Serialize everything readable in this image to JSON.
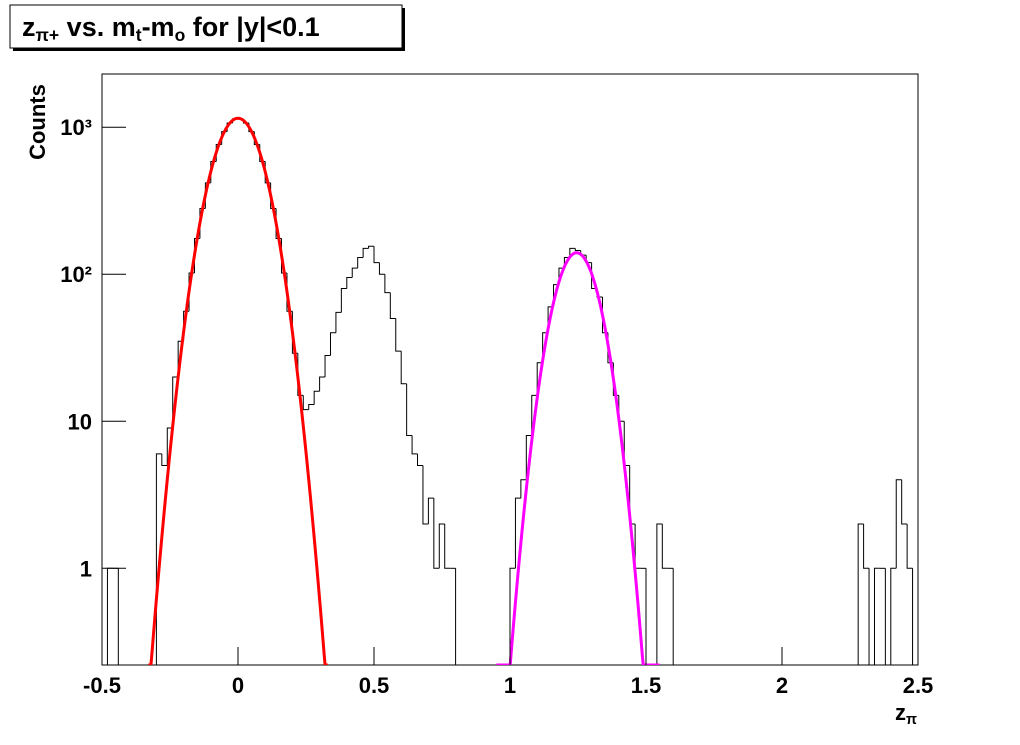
{
  "chart_data": {
    "type": "histogram",
    "title_parts": [
      {
        "text": "z"
      },
      {
        "text": "π+",
        "sub": true
      },
      {
        "text": " vs. m"
      },
      {
        "text": "t",
        "sub": true
      },
      {
        "text": "-m"
      },
      {
        "text": "o",
        "sub": true
      },
      {
        "text": " for |y|<0.1"
      }
    ],
    "xlabel_parts": [
      {
        "text": "z"
      },
      {
        "text": "π",
        "sub": true
      }
    ],
    "ylabel": "Counts",
    "log_y": true,
    "color": "#000000",
    "bins": [
      -0.5,
      -0.48,
      -0.46,
      -0.44,
      -0.42,
      -0.4,
      -0.38,
      -0.36,
      -0.34,
      -0.32,
      -0.3,
      -0.28,
      -0.26,
      -0.24,
      -0.22,
      -0.2,
      -0.18,
      -0.16,
      -0.14,
      -0.12,
      -0.1,
      -0.08,
      -0.06,
      -0.04,
      -0.02,
      0,
      0.02,
      0.04,
      0.06,
      0.08,
      0.1,
      0.12,
      0.14,
      0.16,
      0.18,
      0.2,
      0.22,
      0.24,
      0.26,
      0.28,
      0.3,
      0.32,
      0.34,
      0.36,
      0.38,
      0.4,
      0.42,
      0.44,
      0.46,
      0.48,
      0.5,
      0.52,
      0.54,
      0.56,
      0.58,
      0.6,
      0.62,
      0.64,
      0.66,
      0.68,
      0.7,
      0.72,
      0.74,
      0.76,
      0.78,
      0.8,
      0.82,
      0.84,
      0.86,
      0.88,
      0.9,
      0.92,
      0.94,
      0.96,
      0.98,
      1,
      1.02,
      1.04,
      1.06,
      1.08,
      1.1,
      1.12,
      1.14,
      1.16,
      1.18,
      1.2,
      1.22,
      1.24,
      1.26,
      1.28,
      1.3,
      1.32,
      1.34,
      1.36,
      1.38,
      1.4,
      1.42,
      1.44,
      1.46,
      1.48,
      1.5,
      1.52,
      1.54,
      1.56,
      1.58,
      1.6,
      1.62,
      1.64,
      1.66,
      1.68,
      1.7,
      1.72,
      1.74,
      1.76,
      1.78,
      1.8,
      1.82,
      1.84,
      1.86,
      1.88,
      1.9,
      1.92,
      1.94,
      1.96,
      1.98,
      2,
      2.02,
      2.04,
      2.06,
      2.08,
      2.1,
      2.12,
      2.14,
      2.16,
      2.18,
      2.2,
      2.22,
      2.24,
      2.26,
      2.28,
      2.3,
      2.32,
      2.34,
      2.36,
      2.38,
      2.4,
      2.42,
      2.44,
      2.46,
      2.48,
      2.5
    ],
    "values": [
      0,
      1,
      1,
      0,
      0,
      0,
      0,
      0,
      0,
      0,
      6,
      5,
      9,
      20,
      35,
      56,
      102,
      175,
      280,
      418,
      584,
      763,
      933,
      1067,
      1140,
      1140,
      1067,
      933,
      763,
      584,
      418,
      280,
      175,
      102,
      56,
      29,
      15,
      12,
      13,
      16,
      20,
      28,
      40,
      55,
      80,
      95,
      110,
      130,
      150,
      155,
      120,
      100,
      75,
      50,
      30,
      18,
      8,
      6,
      5,
      2,
      3,
      1,
      2,
      1,
      1,
      0,
      0,
      0,
      0,
      0,
      0,
      0,
      0,
      0,
      0,
      1,
      3,
      4,
      8,
      15,
      25,
      40,
      60,
      85,
      110,
      130,
      150,
      145,
      135,
      120,
      80,
      70,
      40,
      25,
      15,
      10,
      5,
      2,
      1,
      1,
      0,
      0,
      2,
      1,
      1,
      0,
      0,
      0,
      0,
      0,
      0,
      0,
      0,
      0,
      0,
      0,
      0,
      0,
      0,
      0,
      0,
      0,
      0,
      0,
      0,
      0,
      0,
      0,
      0,
      0,
      0,
      0,
      0,
      0,
      0,
      0,
      0,
      0,
      0,
      2,
      1,
      0,
      1,
      1,
      0,
      1,
      4,
      2,
      1,
      0
    ],
    "fits": [
      {
        "color": "#ff0000",
        "constant": 1150,
        "mean": 0,
        "sigma": 0.0773,
        "range": [
          -0.33,
          0.33
        ]
      },
      {
        "color": "#ff00ff",
        "constant": 140,
        "mean": 1.245,
        "sigma": 0.068,
        "range": [
          0.95,
          1.55
        ]
      }
    ],
    "xlim": [
      -0.5,
      2.5
    ],
    "xticks": [
      -0.5,
      0,
      0.5,
      1,
      1.5,
      2,
      2.5
    ],
    "ylim": [
      0.22,
      2300
    ],
    "yticks": [
      1,
      10,
      {
        "value": 100,
        "label": "10²"
      },
      {
        "value": 1000,
        "label": "10³"
      }
    ]
  }
}
